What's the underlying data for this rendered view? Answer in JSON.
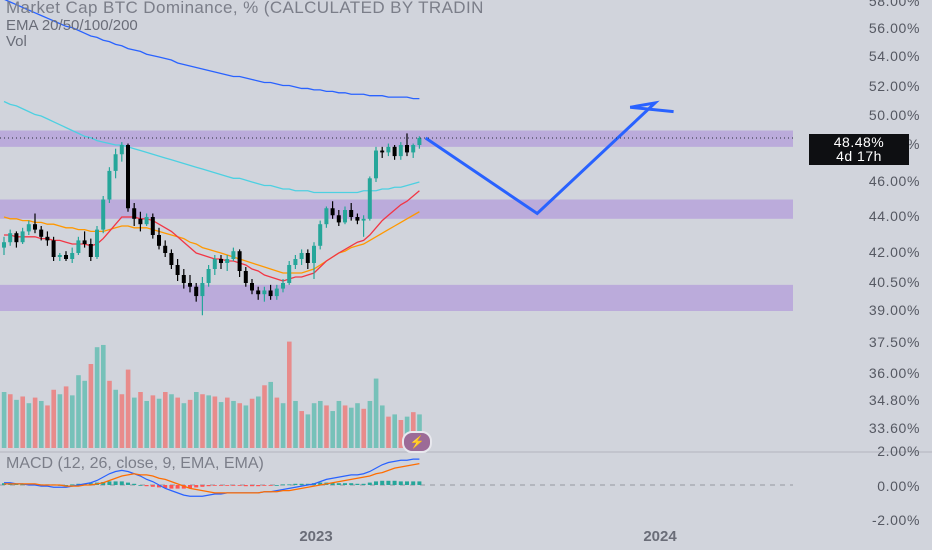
{
  "legend": {
    "title": "Market Cap BTC Dominance, % (CALCULATED BY TRADIN",
    "ema": "EMA 20/50/100/200",
    "vol": "Vol",
    "macd": "MACD (12, 26, close, 9, EMA, EMA)"
  },
  "price_badge": {
    "value": "48.48%",
    "countdown": "4d 17h"
  },
  "logo_icon": "lightning-bolt-icon",
  "colors": {
    "background": "#d1d4dc",
    "bull": "#26a69a",
    "bear": "#000000",
    "zone": "#b39ddb",
    "ema20": "#f23645",
    "ema50": "#ff9800",
    "ema100": "#4dd0e1",
    "ema200": "#2962ff",
    "projection": "#2962ff",
    "vol_up": "#76c1b9",
    "vol_down": "#e88b8b"
  },
  "chart_data": {
    "type": "candlestick",
    "title": "Market Cap BTC Dominance, % (CALCULATED BY TRADIN",
    "y_axis_ticks": [
      "58.00%",
      "56.00%",
      "54.00%",
      "52.00%",
      "50.00%",
      "48.00%",
      "46.00%",
      "44.00%",
      "42.00%",
      "40.50%",
      "39.00%",
      "37.50%",
      "36.00%",
      "34.80%",
      "33.60%"
    ],
    "macd_axis_ticks": [
      "2.00%",
      "0.00%",
      "-2.00%"
    ],
    "x_ticks": [
      "2023",
      "2024"
    ],
    "ylim": [
      33.0,
      58.5
    ],
    "last_price": 48.48,
    "candles": [
      [
        42.3,
        42.9,
        41.9,
        42.6
      ],
      [
        42.6,
        43.3,
        42.4,
        43.1
      ],
      [
        43.1,
        43.2,
        42.3,
        42.6
      ],
      [
        42.6,
        43.4,
        42.5,
        43.2
      ],
      [
        43.2,
        43.8,
        43.0,
        43.6
      ],
      [
        43.6,
        44.2,
        43.1,
        43.3
      ],
      [
        43.3,
        43.5,
        42.7,
        42.9
      ],
      [
        42.9,
        43.2,
        42.4,
        42.7
      ],
      [
        42.7,
        42.9,
        41.6,
        41.8
      ],
      [
        41.8,
        42.0,
        41.6,
        41.9
      ],
      [
        41.9,
        42.1,
        41.6,
        41.7
      ],
      [
        41.7,
        42.3,
        41.5,
        42.0
      ],
      [
        42.0,
        42.9,
        41.9,
        42.7
      ],
      [
        42.7,
        43.2,
        42.3,
        42.5
      ],
      [
        42.5,
        42.8,
        41.6,
        41.8
      ],
      [
        41.8,
        43.5,
        41.7,
        43.3
      ],
      [
        43.3,
        45.2,
        43.1,
        45.0
      ],
      [
        45.0,
        46.8,
        44.8,
        46.6
      ],
      [
        46.6,
        47.8,
        46.2,
        47.5
      ],
      [
        47.5,
        48.2,
        47.1,
        48.0
      ],
      [
        48.0,
        48.1,
        44.3,
        44.5
      ],
      [
        44.5,
        44.8,
        43.5,
        43.9
      ],
      [
        43.9,
        44.3,
        43.2,
        43.6
      ],
      [
        43.6,
        44.2,
        43.5,
        44.0
      ],
      [
        44.0,
        44.2,
        42.8,
        43.0
      ],
      [
        43.0,
        43.4,
        42.2,
        42.4
      ],
      [
        42.4,
        42.7,
        41.8,
        42.0
      ],
      [
        42.0,
        42.2,
        41.2,
        41.4
      ],
      [
        41.4,
        41.7,
        40.6,
        40.9
      ],
      [
        40.9,
        41.2,
        40.2,
        40.5
      ],
      [
        40.5,
        40.9,
        40.0,
        40.3
      ],
      [
        40.3,
        40.5,
        39.5,
        39.8
      ],
      [
        39.8,
        40.8,
        38.8,
        40.5
      ],
      [
        40.5,
        41.4,
        40.3,
        41.2
      ],
      [
        41.2,
        41.9,
        40.9,
        41.7
      ],
      [
        41.7,
        41.9,
        41.2,
        41.5
      ],
      [
        41.5,
        41.9,
        41.1,
        41.7
      ],
      [
        41.7,
        42.3,
        41.6,
        42.1
      ],
      [
        42.1,
        42.2,
        40.8,
        41.1
      ],
      [
        41.1,
        41.3,
        40.3,
        40.5
      ],
      [
        40.5,
        40.7,
        39.9,
        40.1
      ],
      [
        40.1,
        40.3,
        39.6,
        39.9
      ],
      [
        39.9,
        40.3,
        39.5,
        40.1
      ],
      [
        40.1,
        40.4,
        39.6,
        39.8
      ],
      [
        39.8,
        40.4,
        39.6,
        40.2
      ],
      [
        40.2,
        40.7,
        40.0,
        40.5
      ],
      [
        40.5,
        41.6,
        40.4,
        41.4
      ],
      [
        41.4,
        41.9,
        41.2,
        41.7
      ],
      [
        41.7,
        42.2,
        41.4,
        42.0
      ],
      [
        42.0,
        42.2,
        41.2,
        41.5
      ],
      [
        41.5,
        42.6,
        40.7,
        42.4
      ],
      [
        42.4,
        43.8,
        42.2,
        43.6
      ],
      [
        43.6,
        44.6,
        43.4,
        44.5
      ],
      [
        44.5,
        44.9,
        43.9,
        44.1
      ],
      [
        44.1,
        44.4,
        43.5,
        43.7
      ],
      [
        43.7,
        44.6,
        43.6,
        44.4
      ],
      [
        44.4,
        44.8,
        43.8,
        44.0
      ],
      [
        44.0,
        44.2,
        43.6,
        43.8
      ],
      [
        43.8,
        44.1,
        42.9,
        43.9
      ],
      [
        43.9,
        46.3,
        43.8,
        46.2
      ],
      [
        46.2,
        47.9,
        46.0,
        47.7
      ],
      [
        47.7,
        47.9,
        47.3,
        47.6
      ],
      [
        47.6,
        48.1,
        47.4,
        47.9
      ],
      [
        47.9,
        48.0,
        47.2,
        47.4
      ],
      [
        47.4,
        48.2,
        47.2,
        48.0
      ],
      [
        48.0,
        48.8,
        47.4,
        47.6
      ],
      [
        47.6,
        48.1,
        47.3,
        48.0
      ],
      [
        48.0,
        48.6,
        47.8,
        48.48
      ]
    ],
    "ema_20": [
      43.0,
      43.0,
      42.9,
      42.9,
      42.9,
      42.9,
      42.8,
      42.8,
      42.7,
      42.7,
      42.6,
      42.5,
      42.5,
      42.5,
      42.4,
      42.5,
      42.8,
      43.2,
      43.6,
      44.0,
      44.0,
      44.0,
      43.9,
      43.9,
      43.8,
      43.6,
      43.4,
      43.2,
      42.9,
      42.6,
      42.3,
      42.0,
      41.9,
      41.8,
      41.7,
      41.7,
      41.6,
      41.6,
      41.5,
      41.4,
      41.2,
      41.1,
      40.9,
      40.8,
      40.7,
      40.6,
      40.7,
      40.8,
      40.8,
      40.9,
      41.0,
      41.3,
      41.6,
      41.8,
      42.0,
      42.2,
      42.4,
      42.6,
      42.7,
      43.0,
      43.4,
      43.8,
      44.1,
      44.4,
      44.7,
      44.9,
      45.2,
      45.5
    ],
    "ema_50": [
      44.0,
      43.9,
      43.9,
      43.8,
      43.8,
      43.7,
      43.7,
      43.6,
      43.6,
      43.5,
      43.4,
      43.4,
      43.3,
      43.3,
      43.2,
      43.2,
      43.2,
      43.3,
      43.4,
      43.5,
      43.5,
      43.4,
      43.4,
      43.4,
      43.3,
      43.2,
      43.1,
      43.0,
      42.9,
      42.8,
      42.6,
      42.5,
      42.3,
      42.2,
      42.1,
      42.0,
      41.9,
      41.8,
      41.7,
      41.6,
      41.5,
      41.4,
      41.3,
      41.2,
      41.1,
      41.0,
      41.0,
      41.0,
      41.0,
      41.1,
      41.2,
      41.4,
      41.6,
      41.8,
      42.0,
      42.1,
      42.3,
      42.4,
      42.5,
      42.7,
      42.9,
      43.1,
      43.3,
      43.5,
      43.7,
      43.9,
      44.1,
      44.3
    ],
    "ema_100": [
      51.0,
      50.8,
      50.7,
      50.5,
      50.3,
      50.1,
      50.0,
      49.8,
      49.6,
      49.4,
      49.2,
      49.0,
      48.8,
      48.6,
      48.5,
      48.3,
      48.2,
      48.1,
      48.0,
      48.0,
      47.9,
      47.8,
      47.7,
      47.6,
      47.5,
      47.4,
      47.3,
      47.2,
      47.1,
      47.0,
      46.9,
      46.8,
      46.7,
      46.6,
      46.5,
      46.4,
      46.3,
      46.2,
      46.2,
      46.1,
      46.0,
      45.9,
      45.8,
      45.8,
      45.7,
      45.6,
      45.6,
      45.5,
      45.5,
      45.5,
      45.4,
      45.4,
      45.4,
      45.4,
      45.4,
      45.4,
      45.4,
      45.4,
      45.5,
      45.5,
      45.5,
      45.6,
      45.6,
      45.7,
      45.7,
      45.8,
      45.9,
      46.0
    ],
    "ema_200": [
      58.2,
      58.0,
      57.8,
      57.6,
      57.4,
      57.2,
      57.0,
      56.8,
      56.6,
      56.4,
      56.2,
      56.1,
      55.9,
      55.7,
      55.5,
      55.4,
      55.2,
      55.1,
      54.9,
      54.8,
      54.6,
      54.5,
      54.4,
      54.2,
      54.1,
      54.0,
      53.9,
      53.8,
      53.6,
      53.5,
      53.4,
      53.3,
      53.2,
      53.1,
      53.0,
      52.9,
      52.8,
      52.7,
      52.7,
      52.6,
      52.5,
      52.4,
      52.3,
      52.3,
      52.2,
      52.1,
      52.1,
      52.0,
      51.9,
      51.9,
      51.8,
      51.8,
      51.7,
      51.7,
      51.6,
      51.6,
      51.5,
      51.5,
      51.5,
      51.4,
      51.4,
      51.4,
      51.3,
      51.3,
      51.3,
      51.3,
      51.2,
      51.2
    ],
    "zones": [
      [
        47.9,
        49.0
      ],
      [
        43.9,
        45.0
      ],
      [
        39.0,
        40.4
      ]
    ],
    "projection": [
      [
        68,
        48.48
      ],
      [
        86,
        44.2
      ],
      [
        105,
        50.9
      ],
      [
        101,
        50.6
      ],
      [
        108,
        50.3
      ]
    ],
    "volume": [
      {
        "v": 0.5,
        "up": true
      },
      {
        "v": 0.48,
        "up": false
      },
      {
        "v": 0.43,
        "up": true
      },
      {
        "v": 0.46,
        "up": false
      },
      {
        "v": 0.4,
        "up": true
      },
      {
        "v": 0.45,
        "up": false
      },
      {
        "v": 0.42,
        "up": true
      },
      {
        "v": 0.38,
        "up": false
      },
      {
        "v": 0.52,
        "up": false
      },
      {
        "v": 0.48,
        "up": true
      },
      {
        "v": 0.55,
        "up": false
      },
      {
        "v": 0.47,
        "up": true
      },
      {
        "v": 0.65,
        "up": true
      },
      {
        "v": 0.6,
        "up": true
      },
      {
        "v": 0.75,
        "up": false
      },
      {
        "v": 0.9,
        "up": true
      },
      {
        "v": 0.92,
        "up": true
      },
      {
        "v": 0.6,
        "up": false
      },
      {
        "v": 0.52,
        "up": true
      },
      {
        "v": 0.48,
        "up": false
      },
      {
        "v": 0.7,
        "up": false
      },
      {
        "v": 0.45,
        "up": true
      },
      {
        "v": 0.5,
        "up": false
      },
      {
        "v": 0.42,
        "up": true
      },
      {
        "v": 0.47,
        "up": false
      },
      {
        "v": 0.44,
        "up": true
      },
      {
        "v": 0.5,
        "up": false
      },
      {
        "v": 0.48,
        "up": true
      },
      {
        "v": 0.45,
        "up": false
      },
      {
        "v": 0.4,
        "up": true
      },
      {
        "v": 0.43,
        "up": false
      },
      {
        "v": 0.5,
        "up": true
      },
      {
        "v": 0.48,
        "up": false
      },
      {
        "v": 0.47,
        "up": true
      },
      {
        "v": 0.46,
        "up": false
      },
      {
        "v": 0.41,
        "up": true
      },
      {
        "v": 0.45,
        "up": false
      },
      {
        "v": 0.42,
        "up": true
      },
      {
        "v": 0.4,
        "up": false
      },
      {
        "v": 0.38,
        "up": true
      },
      {
        "v": 0.44,
        "up": false
      },
      {
        "v": 0.46,
        "up": true
      },
      {
        "v": 0.56,
        "up": false
      },
      {
        "v": 0.59,
        "up": true
      },
      {
        "v": 0.45,
        "up": false
      },
      {
        "v": 0.4,
        "up": true
      },
      {
        "v": 0.95,
        "up": false
      },
      {
        "v": 0.42,
        "up": true
      },
      {
        "v": 0.33,
        "up": false
      },
      {
        "v": 0.3,
        "up": true
      },
      {
        "v": 0.4,
        "up": true
      },
      {
        "v": 0.42,
        "up": true
      },
      {
        "v": 0.38,
        "up": false
      },
      {
        "v": 0.33,
        "up": true
      },
      {
        "v": 0.42,
        "up": true
      },
      {
        "v": 0.38,
        "up": false
      },
      {
        "v": 0.36,
        "up": true
      },
      {
        "v": 0.4,
        "up": true
      },
      {
        "v": 0.35,
        "up": false
      },
      {
        "v": 0.42,
        "up": true
      },
      {
        "v": 0.62,
        "up": true
      },
      {
        "v": 0.38,
        "up": true
      },
      {
        "v": 0.28,
        "up": false
      },
      {
        "v": 0.3,
        "up": true
      },
      {
        "v": 0.25,
        "up": false
      },
      {
        "v": 0.28,
        "up": true
      },
      {
        "v": 0.32,
        "up": false
      },
      {
        "v": 0.3,
        "up": true
      }
    ],
    "macd_hist": [
      0.3,
      0.3,
      0.2,
      0.2,
      0.2,
      0.2,
      0.1,
      0.1,
      0.1,
      0.0,
      0.0,
      0.1,
      0.2,
      0.2,
      0.3,
      0.4,
      0.5,
      0.6,
      0.6,
      0.6,
      0.4,
      0.2,
      0.0,
      -0.2,
      -0.3,
      -0.4,
      -0.5,
      -0.6,
      -0.6,
      -0.6,
      -0.5,
      -0.4,
      -0.3,
      -0.2,
      -0.1,
      -0.1,
      -0.1,
      -0.1,
      -0.1,
      -0.2,
      -0.2,
      -0.2,
      -0.1,
      -0.1,
      0.0,
      0.1,
      0.1,
      0.2,
      0.2,
      0.2,
      0.3,
      0.4,
      0.4,
      0.4,
      0.3,
      0.3,
      0.3,
      0.2,
      0.2,
      0.4,
      0.6,
      0.7,
      0.7,
      0.7,
      0.6,
      0.6,
      0.6,
      0.6
    ],
    "macd_line": [
      0.2,
      0.2,
      0.1,
      0.1,
      0.0,
      0.0,
      -0.1,
      -0.1,
      -0.2,
      -0.2,
      -0.2,
      -0.1,
      0.0,
      0.1,
      0.2,
      0.4,
      0.7,
      1.0,
      1.2,
      1.3,
      1.2,
      1.0,
      0.8,
      0.5,
      0.3,
      0.0,
      -0.3,
      -0.5,
      -0.7,
      -0.9,
      -1.0,
      -1.0,
      -1.0,
      -0.9,
      -0.8,
      -0.8,
      -0.7,
      -0.7,
      -0.7,
      -0.7,
      -0.7,
      -0.7,
      -0.6,
      -0.6,
      -0.5,
      -0.4,
      -0.3,
      -0.2,
      -0.1,
      0.0,
      0.1,
      0.3,
      0.5,
      0.6,
      0.7,
      0.8,
      0.9,
      0.9,
      1.0,
      1.2,
      1.5,
      1.8,
      2.0,
      2.1,
      2.2,
      2.2,
      2.3,
      2.3
    ],
    "macd_signal": [
      0.1,
      0.1,
      0.1,
      0.1,
      0.1,
      0.1,
      0.0,
      0.0,
      0.0,
      0.0,
      -0.1,
      -0.1,
      -0.1,
      0.0,
      0.0,
      0.1,
      0.2,
      0.4,
      0.6,
      0.8,
      0.9,
      1.0,
      0.9,
      0.9,
      0.8,
      0.6,
      0.5,
      0.3,
      0.1,
      -0.1,
      -0.3,
      -0.4,
      -0.5,
      -0.6,
      -0.7,
      -0.7,
      -0.7,
      -0.7,
      -0.7,
      -0.7,
      -0.7,
      -0.7,
      -0.6,
      -0.6,
      -0.6,
      -0.5,
      -0.5,
      -0.4,
      -0.3,
      -0.2,
      -0.1,
      0.0,
      0.1,
      0.2,
      0.3,
      0.4,
      0.5,
      0.6,
      0.7,
      0.8,
      1.0,
      1.1,
      1.3,
      1.5,
      1.6,
      1.7,
      1.8,
      1.9
    ]
  }
}
